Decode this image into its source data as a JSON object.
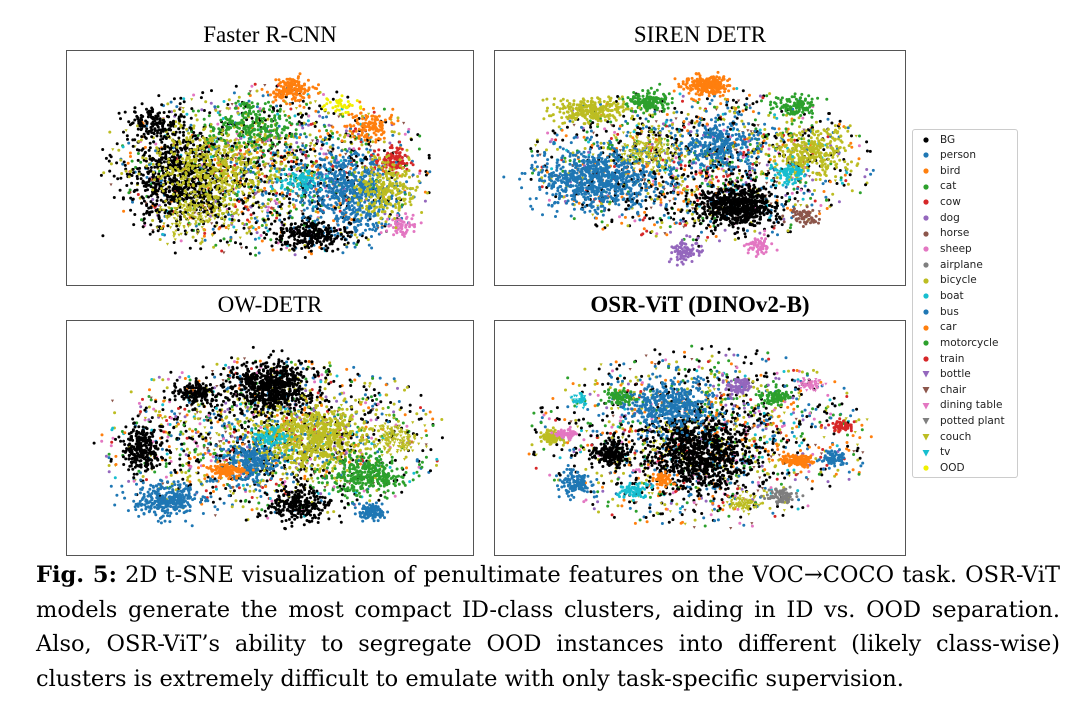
{
  "figure": {
    "panels": [
      {
        "id": "faster-rcnn",
        "title": "Faster R-CNN",
        "bold": false
      },
      {
        "id": "siren-detr",
        "title": "SIREN DETR",
        "bold": false
      },
      {
        "id": "ow-detr",
        "title": "OW-DETR",
        "bold": false
      },
      {
        "id": "osr-vit",
        "title": "OSR-ViT (DINOv2-B)",
        "bold": true
      }
    ],
    "legend": [
      {
        "label": "BG",
        "color": "#000000",
        "marker": "circle"
      },
      {
        "label": "person",
        "color": "#1f77b4",
        "marker": "circle"
      },
      {
        "label": "bird",
        "color": "#ff7f0e",
        "marker": "circle"
      },
      {
        "label": "cat",
        "color": "#2ca02c",
        "marker": "circle"
      },
      {
        "label": "cow",
        "color": "#d62728",
        "marker": "circle"
      },
      {
        "label": "dog",
        "color": "#9467bd",
        "marker": "circle"
      },
      {
        "label": "horse",
        "color": "#8c564b",
        "marker": "circle"
      },
      {
        "label": "sheep",
        "color": "#e377c2",
        "marker": "circle"
      },
      {
        "label": "airplane",
        "color": "#7f7f7f",
        "marker": "circle"
      },
      {
        "label": "bicycle",
        "color": "#bcbd22",
        "marker": "circle"
      },
      {
        "label": "boat",
        "color": "#17becf",
        "marker": "circle"
      },
      {
        "label": "bus",
        "color": "#1f77b4",
        "marker": "circle"
      },
      {
        "label": "car",
        "color": "#ff7f0e",
        "marker": "circle"
      },
      {
        "label": "motorcycle",
        "color": "#2ca02c",
        "marker": "circle"
      },
      {
        "label": "train",
        "color": "#d62728",
        "marker": "circle"
      },
      {
        "label": "bottle",
        "color": "#9467bd",
        "marker": "triangle"
      },
      {
        "label": "chair",
        "color": "#8c564b",
        "marker": "triangle"
      },
      {
        "label": "dining table",
        "color": "#e377c2",
        "marker": "triangle"
      },
      {
        "label": "potted plant",
        "color": "#7f7f7f",
        "marker": "triangle"
      },
      {
        "label": "couch",
        "color": "#bcbd22",
        "marker": "triangle"
      },
      {
        "label": "tv",
        "color": "#17becf",
        "marker": "triangle"
      },
      {
        "label": "OOD",
        "color": "#f0f000",
        "marker": "circle"
      }
    ]
  },
  "chart_data": {
    "type": "scatter",
    "title": "2D t-SNE visualization of penultimate features",
    "panels": [
      "Faster R-CNN",
      "SIREN DETR",
      "OW-DETR",
      "OSR-ViT (DINOv2-B)"
    ],
    "series_labels": [
      "BG",
      "person",
      "bird",
      "cat",
      "cow",
      "dog",
      "horse",
      "sheep",
      "airplane",
      "bicycle",
      "boat",
      "bus",
      "car",
      "motorcycle",
      "train",
      "bottle",
      "chair",
      "dining table",
      "potted plant",
      "couch",
      "tv",
      "OOD"
    ],
    "xlabel": "",
    "ylabel": "",
    "axes_visible": false
  },
  "caption": {
    "label": "Fig. 5:",
    "text": "2D t-SNE visualization of penultimate features on the VOC→COCO task. OSR-ViT models generate the most compact ID-class clusters, aiding in ID vs. OOD separation. Also, OSR-ViT’s ability to segregate OOD instances into different (likely class-wise) clusters is extremely difficult to emulate with only task-specific supervision."
  }
}
